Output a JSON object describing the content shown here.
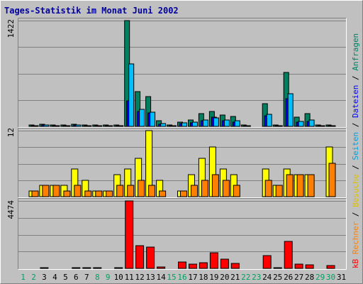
{
  "chart_data": {
    "type": "bar",
    "title": "Tages-Statistik im Monat Juni 2002",
    "days": [
      "1",
      "2",
      "3",
      "4",
      "5",
      "6",
      "7",
      "8",
      "9",
      "10",
      "11",
      "12",
      "13",
      "14",
      "15",
      "16",
      "17",
      "18",
      "19",
      "20",
      "21",
      "22",
      "23",
      "24",
      "25",
      "26",
      "27",
      "28",
      "29",
      "30",
      "31"
    ],
    "weekend_days": [
      "1",
      "2",
      "8",
      "9",
      "15",
      "16",
      "22",
      "23",
      "29",
      "30"
    ],
    "top_panel": {
      "ymax_label": "1422",
      "ylim": [
        0,
        1422
      ],
      "legend": [
        "Anfragen",
        "Dateien",
        "Seiten"
      ],
      "series": [
        {
          "name": "Anfragen",
          "color": "#008060",
          "values": [
            0,
            20,
            30,
            20,
            20,
            30,
            20,
            20,
            20,
            20,
            1422,
            470,
            400,
            80,
            20,
            60,
            90,
            170,
            200,
            150,
            130,
            20,
            0,
            310,
            20,
            730,
            120,
            170,
            20,
            20,
            0
          ]
        },
        {
          "name": "Dateien",
          "color": "#0000ff",
          "values": [
            0,
            10,
            15,
            10,
            10,
            15,
            10,
            10,
            10,
            10,
            340,
            200,
            180,
            30,
            10,
            40,
            50,
            80,
            120,
            80,
            60,
            10,
            0,
            140,
            10,
            370,
            60,
            70,
            10,
            10,
            0
          ]
        },
        {
          "name": "Seiten",
          "color": "#00c0ff",
          "values": [
            0,
            10,
            20,
            10,
            10,
            15,
            10,
            10,
            10,
            10,
            840,
            230,
            190,
            40,
            10,
            50,
            60,
            90,
            110,
            90,
            80,
            10,
            0,
            160,
            10,
            440,
            70,
            90,
            10,
            10,
            0
          ]
        }
      ]
    },
    "middle_panel": {
      "ymax_label": "12",
      "ylim": [
        0,
        12
      ],
      "legend": [
        "Besuche",
        "Rechner"
      ],
      "series": [
        {
          "name": "Besuche",
          "color": "#ffff00",
          "values": [
            0,
            1,
            2,
            2,
            2,
            5,
            3,
            1,
            1,
            4,
            5,
            7,
            12,
            3,
            0,
            1,
            4,
            7,
            9,
            5,
            4,
            0,
            0,
            5,
            2,
            5,
            4,
            4,
            0,
            9,
            0
          ]
        },
        {
          "name": "Rechner",
          "color": "#ff8000",
          "values": [
            0,
            1,
            2,
            2,
            1,
            2,
            1,
            1,
            1,
            2,
            2,
            3,
            2,
            1,
            0,
            1,
            2,
            3,
            4,
            3,
            2,
            0,
            0,
            3,
            2,
            4,
            4,
            4,
            0,
            6,
            0
          ]
        }
      ]
    },
    "bottom_panel": {
      "ymax_label": "4474",
      "ylim": [
        0,
        4474
      ],
      "legend": [
        "kB"
      ],
      "series": [
        {
          "name": "kB",
          "color": "#ff0000",
          "values": [
            0,
            0,
            60,
            0,
            0,
            60,
            60,
            60,
            0,
            60,
            4474,
            1520,
            1430,
            100,
            0,
            430,
            290,
            400,
            1040,
            600,
            340,
            0,
            0,
            870,
            60,
            1790,
            270,
            250,
            0,
            190,
            0
          ]
        }
      ]
    }
  }
}
